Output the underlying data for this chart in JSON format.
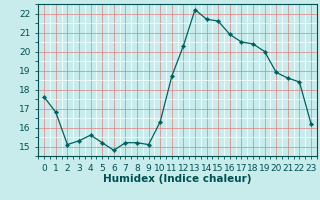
{
  "x": [
    0,
    1,
    2,
    3,
    4,
    5,
    6,
    7,
    8,
    9,
    10,
    11,
    12,
    13,
    14,
    15,
    16,
    17,
    18,
    19,
    20,
    21,
    22,
    23
  ],
  "y": [
    17.6,
    16.8,
    15.1,
    15.3,
    15.6,
    15.2,
    14.8,
    15.2,
    15.2,
    15.1,
    16.3,
    18.7,
    20.3,
    22.2,
    21.7,
    21.6,
    20.9,
    20.5,
    20.4,
    20.0,
    18.9,
    18.6,
    18.4,
    16.2
  ],
  "line_color": "#006060",
  "marker": "D",
  "marker_size": 2.2,
  "bg_color": "#c8ecec",
  "grid_major_color": "#e08080",
  "grid_minor_color": "#ffffff",
  "xlabel": "Humidex (Indice chaleur)",
  "xlim": [
    -0.5,
    23.5
  ],
  "ylim": [
    14.5,
    22.5
  ],
  "yticks": [
    15,
    16,
    17,
    18,
    19,
    20,
    21,
    22
  ],
  "xticks": [
    0,
    1,
    2,
    3,
    4,
    5,
    6,
    7,
    8,
    9,
    10,
    11,
    12,
    13,
    14,
    15,
    16,
    17,
    18,
    19,
    20,
    21,
    22,
    23
  ],
  "font_color": "#005050",
  "axis_color": "#005050",
  "fontsize_axis": 6.5,
  "fontsize_label": 7.5
}
